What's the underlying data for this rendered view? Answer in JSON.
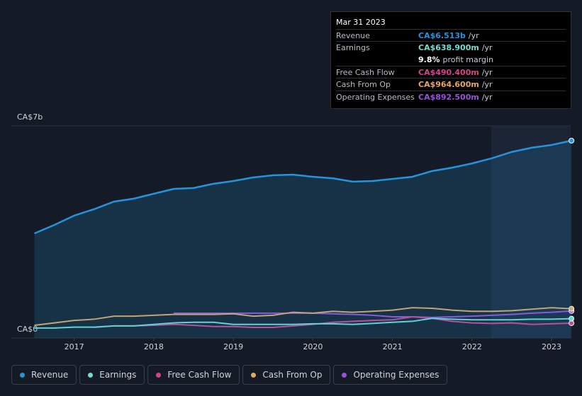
{
  "chart_data": {
    "type": "line",
    "x": [
      2016.5,
      2016.75,
      2017,
      2017.25,
      2017.5,
      2017.75,
      2018,
      2018.25,
      2018.5,
      2018.75,
      2019,
      2019.25,
      2019.5,
      2019.75,
      2020,
      2020.25,
      2020.5,
      2020.75,
      2021,
      2021.25,
      2021.5,
      2021.75,
      2022,
      2022.25,
      2022.5,
      2022.75,
      2023,
      2023.25
    ],
    "xlim": [
      2016.21,
      2023.24
    ],
    "xticks": [
      2017,
      2018,
      2019,
      2020,
      2021,
      2022,
      2023
    ],
    "ylim": [
      0,
      7
    ],
    "yticks": [
      {
        "value": 0,
        "label": "CA$0"
      },
      {
        "value": 7,
        "label": "CA$7b"
      }
    ],
    "series": [
      {
        "name": "Revenue",
        "color": "#2394df",
        "values": [
          3.45,
          3.73,
          4.04,
          4.25,
          4.5,
          4.6,
          4.76,
          4.92,
          4.95,
          5.09,
          5.18,
          5.3,
          5.37,
          5.39,
          5.32,
          5.27,
          5.16,
          5.18,
          5.25,
          5.32,
          5.51,
          5.62,
          5.76,
          5.93,
          6.14,
          6.28,
          6.37,
          6.513
        ]
      },
      {
        "name": "Earnings",
        "color": "#6ee0d3",
        "values": [
          0.33,
          0.33,
          0.36,
          0.36,
          0.4,
          0.4,
          0.45,
          0.5,
          0.52,
          0.52,
          0.45,
          0.45,
          0.45,
          0.45,
          0.47,
          0.47,
          0.45,
          0.48,
          0.52,
          0.55,
          0.65,
          0.62,
          0.6,
          0.6,
          0.6,
          0.62,
          0.62,
          0.6389
        ]
      },
      {
        "name": "Free Cash Flow",
        "color": "#d9418c",
        "values": [
          null,
          null,
          null,
          0.35,
          0.4,
          0.4,
          0.42,
          0.45,
          0.42,
          0.38,
          0.38,
          0.35,
          0.35,
          0.4,
          0.45,
          0.52,
          0.55,
          0.58,
          0.6,
          0.7,
          0.65,
          0.55,
          0.5,
          0.48,
          0.5,
          0.45,
          0.47,
          0.4904
        ]
      },
      {
        "name": "Cash From Op",
        "color": "#e8a85b",
        "values": [
          0.42,
          0.5,
          0.58,
          0.62,
          0.72,
          0.72,
          0.75,
          0.78,
          0.78,
          0.78,
          0.8,
          0.72,
          0.75,
          0.85,
          0.82,
          0.88,
          0.85,
          0.88,
          0.92,
          1.0,
          0.98,
          0.92,
          0.88,
          0.88,
          0.9,
          0.95,
          1.0,
          0.9646
        ]
      },
      {
        "name": "Operating Expenses",
        "color": "#9b4fe0",
        "values": [
          null,
          null,
          null,
          null,
          null,
          null,
          null,
          0.82,
          0.82,
          0.82,
          0.82,
          0.82,
          0.82,
          0.82,
          0.82,
          0.8,
          0.78,
          0.75,
          0.7,
          0.7,
          0.68,
          0.7,
          0.72,
          0.75,
          0.78,
          0.82,
          0.85,
          0.8925
        ]
      }
    ]
  },
  "tooltip": {
    "date": "Mar 31 2023",
    "rows": [
      {
        "label": "Revenue",
        "value": "CA$6.513b",
        "unit": "/yr",
        "color": "#2394df"
      },
      {
        "label": "Earnings",
        "value": "CA$638.900m",
        "unit": "/yr",
        "color": "#6ee0d3"
      },
      {
        "label": "",
        "value": "9.8%",
        "unit": "profit margin",
        "color": "#ffffff"
      },
      {
        "label": "Free Cash Flow",
        "value": "CA$490.400m",
        "unit": "/yr",
        "color": "#d9418c"
      },
      {
        "label": "Cash From Op",
        "value": "CA$964.600m",
        "unit": "/yr",
        "color": "#e8a85b"
      },
      {
        "label": "Operating Expenses",
        "value": "CA$892.500m",
        "unit": "/yr",
        "color": "#9b4fe0"
      }
    ]
  }
}
